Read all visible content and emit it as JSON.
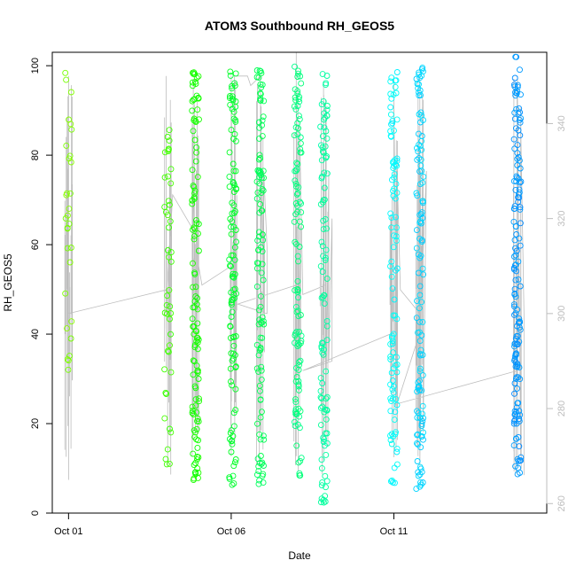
{
  "chart_data": {
    "type": "scatter",
    "title": "ATOM3 Southbound RH_GEOS5",
    "xlabel": "Date",
    "ylabel": "RH_GEOS5",
    "x_ticks": [
      {
        "value": 1,
        "label": "Oct 01"
      },
      {
        "value": 6,
        "label": "Oct 06"
      },
      {
        "value": 11,
        "label": "Oct 11"
      }
    ],
    "y_ticks": [
      0,
      20,
      40,
      60,
      80,
      100
    ],
    "y_right_ticks": [
      260,
      280,
      300,
      320,
      340
    ],
    "xlim": [
      0.5,
      15.7
    ],
    "ylim": [
      0,
      103
    ],
    "y_right_lim": [
      258,
      355
    ],
    "grid": false,
    "legend": "none",
    "colors": {
      "scatter_start": "#80f000",
      "scatter_mid": "#00f060",
      "scatter_end": "#1e90ff",
      "line": "#bdbdbd",
      "axis": "#000000",
      "right_axis": "#bdbdbd"
    },
    "clusters": [
      {
        "x": 1.0,
        "hue": 90,
        "count": 30,
        "ymin": 27,
        "ymax": 100
      },
      {
        "x": 4.05,
        "hue": 105,
        "count": 45,
        "ymin": 3,
        "ymax": 86
      },
      {
        "x": 4.9,
        "hue": 115,
        "count": 120,
        "ymin": 7,
        "ymax": 100
      },
      {
        "x": 6.05,
        "hue": 130,
        "count": 110,
        "ymin": 6,
        "ymax": 99
      },
      {
        "x": 6.9,
        "hue": 140,
        "count": 110,
        "ymin": 6,
        "ymax": 99
      },
      {
        "x": 8.05,
        "hue": 150,
        "count": 110,
        "ymin": 8,
        "ymax": 100
      },
      {
        "x": 8.85,
        "hue": 158,
        "count": 100,
        "ymin": 2,
        "ymax": 99
      },
      {
        "x": 11.0,
        "hue": 180,
        "count": 100,
        "ymin": 6,
        "ymax": 100
      },
      {
        "x": 11.8,
        "hue": 190,
        "count": 120,
        "ymin": 4,
        "ymax": 100
      },
      {
        "x": 14.8,
        "hue": 205,
        "count": 150,
        "ymin": 8,
        "ymax": 103
      }
    ],
    "line_path": [
      {
        "x": 1.0,
        "y2": 265
      },
      {
        "x": 1.0,
        "y2": 350
      },
      {
        "x": 1.0,
        "y2": 300
      },
      {
        "x": 4.0,
        "y2": 305
      },
      {
        "x": 4.0,
        "y2": 350
      },
      {
        "x": 4.0,
        "y2": 300
      },
      {
        "x": 4.2,
        "y2": 325
      },
      {
        "x": 4.8,
        "y2": 318
      },
      {
        "x": 4.8,
        "y2": 330
      },
      {
        "x": 4.8,
        "y2": 270
      },
      {
        "x": 4.8,
        "y2": 340
      },
      {
        "x": 5.0,
        "y2": 275
      },
      {
        "x": 5.0,
        "y2": 335
      },
      {
        "x": 5.0,
        "y2": 310
      },
      {
        "x": 5.1,
        "y2": 306
      },
      {
        "x": 6.0,
        "y2": 310
      },
      {
        "x": 6.0,
        "y2": 350
      },
      {
        "x": 6.0,
        "y2": 270
      },
      {
        "x": 6.0,
        "y2": 345
      },
      {
        "x": 6.1,
        "y2": 300
      },
      {
        "x": 6.1,
        "y2": 350
      },
      {
        "x": 6.5,
        "y2": 350
      },
      {
        "x": 6.6,
        "y2": 348
      },
      {
        "x": 6.9,
        "y2": 350
      },
      {
        "x": 6.9,
        "y2": 275
      },
      {
        "x": 6.9,
        "y2": 340
      },
      {
        "x": 7.0,
        "y2": 300
      },
      {
        "x": 7.0,
        "y2": 330
      },
      {
        "x": 7.1,
        "y2": 314
      },
      {
        "x": 7.1,
        "y2": 300
      },
      {
        "x": 6.2,
        "y2": 302
      },
      {
        "x": 8.0,
        "y2": 306
      },
      {
        "x": 8.0,
        "y2": 355
      },
      {
        "x": 8.0,
        "y2": 270
      },
      {
        "x": 8.0,
        "y2": 345
      },
      {
        "x": 8.1,
        "y2": 290
      },
      {
        "x": 8.1,
        "y2": 340
      },
      {
        "x": 8.2,
        "y2": 304
      },
      {
        "x": 8.9,
        "y2": 306
      },
      {
        "x": 8.9,
        "y2": 345
      },
      {
        "x": 8.9,
        "y2": 275
      },
      {
        "x": 9.0,
        "y2": 330
      },
      {
        "x": 9.0,
        "y2": 290
      },
      {
        "x": 9.1,
        "y2": 320
      },
      {
        "x": 9.1,
        "y2": 290
      },
      {
        "x": 8.2,
        "y2": 288
      },
      {
        "x": 11.0,
        "y2": 296
      },
      {
        "x": 11.0,
        "y2": 350
      },
      {
        "x": 11.0,
        "y2": 272
      },
      {
        "x": 11.0,
        "y2": 345
      },
      {
        "x": 11.1,
        "y2": 280
      },
      {
        "x": 11.1,
        "y2": 330
      },
      {
        "x": 11.2,
        "y2": 305
      },
      {
        "x": 11.8,
        "y2": 300
      },
      {
        "x": 11.8,
        "y2": 350
      },
      {
        "x": 11.8,
        "y2": 268
      },
      {
        "x": 11.9,
        "y2": 345
      },
      {
        "x": 11.9,
        "y2": 275
      },
      {
        "x": 12.0,
        "y2": 330
      },
      {
        "x": 11.8,
        "y2": 296
      },
      {
        "x": 11.1,
        "y2": 281
      },
      {
        "x": 14.8,
        "y2": 288
      },
      {
        "x": 14.8,
        "y2": 350
      },
      {
        "x": 14.8,
        "y2": 268
      },
      {
        "x": 14.8,
        "y2": 345
      },
      {
        "x": 14.9,
        "y2": 270
      },
      {
        "x": 14.9,
        "y2": 340
      },
      {
        "x": 15.0,
        "y2": 300
      },
      {
        "x": 15.0,
        "y2": 266
      }
    ]
  }
}
